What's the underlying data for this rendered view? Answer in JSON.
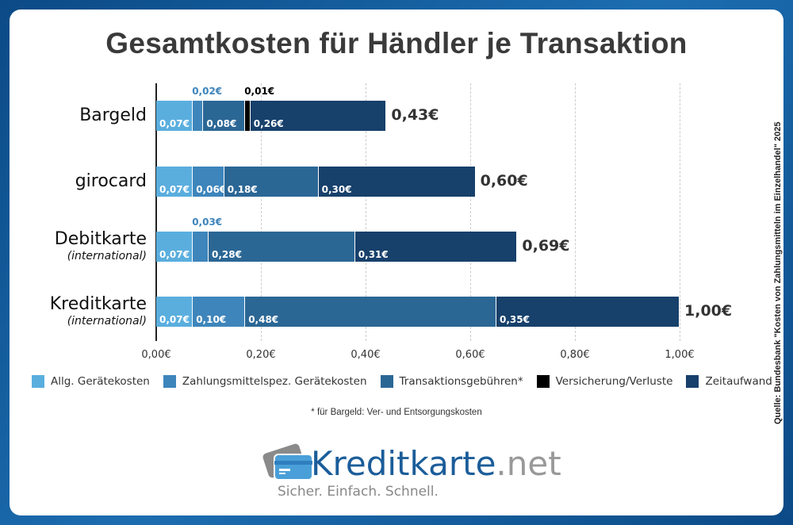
{
  "chart_data": {
    "type": "bar",
    "orientation": "horizontal",
    "stacked": true,
    "title": "Gesamtkosten für Händler je Transaktion",
    "categories": [
      {
        "name": "Bargeld",
        "sub": ""
      },
      {
        "name": "girocard",
        "sub": ""
      },
      {
        "name": "Debitkarte",
        "sub": "(international)"
      },
      {
        "name": "Kreditkarte",
        "sub": "(international)"
      }
    ],
    "series": [
      {
        "name": "Allg. Gerätekosten",
        "color": "#5aaede",
        "values": [
          0.07,
          0.07,
          0.07,
          0.07
        ],
        "labels": [
          "0,07€",
          "0,07€",
          "0,07€",
          "0,07€"
        ]
      },
      {
        "name": "Zahlungsmittelspez. Gerätekosten",
        "color": "#3e85bb",
        "values": [
          0.02,
          0.06,
          0.03,
          0.1
        ],
        "labels": [
          "0,02€",
          "0,06€",
          "0,03€",
          "0,10€"
        ]
      },
      {
        "name": "Transaktionsgebühren*",
        "color": "#2b6795",
        "values": [
          0.08,
          0.18,
          0.28,
          0.48
        ],
        "labels": [
          "0,08€",
          "0,18€",
          "0,28€",
          "0,48€"
        ]
      },
      {
        "name": "Versicherung/Verluste",
        "color": "#000000",
        "values": [
          0.01,
          0,
          0,
          0
        ],
        "labels": [
          "0,01€",
          "",
          "",
          ""
        ]
      },
      {
        "name": "Zeitaufwand",
        "color": "#17406b",
        "values": [
          0.26,
          0.3,
          0.31,
          0.35
        ],
        "labels": [
          "0,26€",
          "0,30€",
          "0,31€",
          "0,35€"
        ]
      }
    ],
    "totals": [
      "0,43€",
      "0,60€",
      "0,69€",
      "1,00€"
    ],
    "xlim": [
      0,
      1.0
    ],
    "xticks": [
      0,
      0.2,
      0.4,
      0.6,
      0.8,
      1.0
    ],
    "xtick_labels": [
      "0,00€",
      "0,20€",
      "0,40€",
      "0,60€",
      "0,80€",
      "1,00€"
    ],
    "legend": "bottom",
    "grid": true
  },
  "footnote": "* für Bargeld: Ver- und Entsorgungskosten",
  "source": "Quelle: Bundesbank \"Kosten von Zahlungsmitteln im Einzelhandel\" 2025",
  "logo": {
    "name": "Kreditkarte",
    "tld": ".net",
    "tagline": "Sicher. Einfach. Schnell."
  }
}
